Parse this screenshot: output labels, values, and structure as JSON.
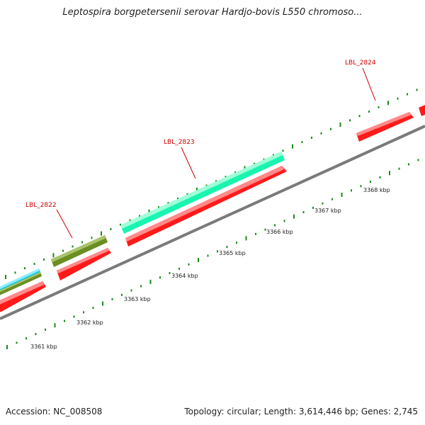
{
  "title": "Leptospira borgpetersenii serovar Hardjo-bovis L550 chromoso...",
  "footer": {
    "accession": "Accession: NC_008508",
    "stats": "Topology: circular; Length: 3,614,446 bp; Genes: 2,745"
  },
  "colors": {
    "backbone": "#8a8a8a",
    "gene_red": "#ff1a1a",
    "gene_green": "#6b8e23",
    "gene_mint": "#19f5b0",
    "gene_cyan": "#1ec8e0",
    "tick_green": "#1a8a1a",
    "label_red": "#cc0000"
  },
  "scale_labels": [
    "3361 kbp",
    "3362 kbp",
    "3363 kbp",
    "3364 kbp",
    "3365 kbp",
    "3366 kbp",
    "3367 kbp",
    "3368 kbp"
  ],
  "gene_labels": [
    "LBL_2822",
    "LBL_2823",
    "LBL_2824"
  ]
}
